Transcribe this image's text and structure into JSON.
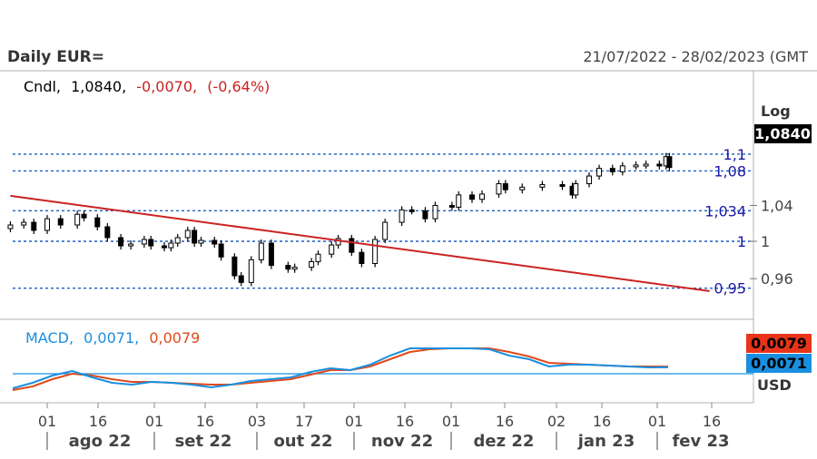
{
  "header": {
    "title": "Daily EUR=",
    "date_range": "21/07/2022 - 28/02/2023 (GMT"
  },
  "price_panel": {
    "legend_series": "Cndl,",
    "legend_last": "1,0840,",
    "legend_change": "-0,0070,",
    "legend_change_pct": "(-0,64%)",
    "scale_label": "Log",
    "last_price_tag": "1,0840",
    "tick_labels": [
      "1,04",
      "1",
      "0,96"
    ],
    "hline_labels": [
      "1,1",
      "1,08",
      "1,034",
      "1",
      "0,95"
    ],
    "colors": {
      "candle": "#000000",
      "trendline": "#cc2222",
      "hline": "#1f5fbf",
      "hline_label": "#1a1aa6",
      "change": "#cc2222",
      "tag_bg": "#000000"
    }
  },
  "macd_panel": {
    "legend_name": "MACD,",
    "legend_macd": "0,0071,",
    "legend_signal": "0,0079",
    "tag_signal": "0,0079",
    "tag_macd": "0,0071",
    "currency": "USD",
    "colors": {
      "macd": "#1a8fe0",
      "signal": "#e04a1a",
      "zero_line": "#1a8fe0"
    }
  },
  "x_axis": {
    "day_labels": [
      "01",
      "16",
      "01",
      "16",
      "03",
      "17",
      "01",
      "16",
      "01",
      "16",
      "02",
      "16",
      "01",
      "16"
    ],
    "month_labels": [
      "ago 22",
      "set 22",
      "out 22",
      "nov 22",
      "dez 22",
      "jan 23",
      "fev 23"
    ]
  },
  "chart_data": [
    {
      "type": "candlestick",
      "title": "Daily EUR=",
      "scale": "log",
      "ylim": [
        0.945,
        1.12
      ],
      "x_range": [
        "2022-07-21",
        "2023-02-28"
      ],
      "horizontal_lines": [
        1.1,
        1.08,
        1.034,
        1.0,
        0.95
      ],
      "trendline": {
        "from": {
          "date": "2022-07-21",
          "value": 1.051
        },
        "to": {
          "date": "2023-02-15",
          "value": 0.947
        }
      },
      "close_series": [
        {
          "date": "2022-07-21",
          "value": 1.018
        },
        {
          "date": "2022-07-25",
          "value": 1.021
        },
        {
          "date": "2022-07-28",
          "value": 1.012
        },
        {
          "date": "2022-08-01",
          "value": 1.025
        },
        {
          "date": "2022-08-05",
          "value": 1.018
        },
        {
          "date": "2022-08-10",
          "value": 1.03
        },
        {
          "date": "2022-08-12",
          "value": 1.026
        },
        {
          "date": "2022-08-16",
          "value": 1.016
        },
        {
          "date": "2022-08-19",
          "value": 1.004
        },
        {
          "date": "2022-08-23",
          "value": 0.995
        },
        {
          "date": "2022-08-26",
          "value": 0.997
        },
        {
          "date": "2022-08-30",
          "value": 1.002
        },
        {
          "date": "2022-09-01",
          "value": 0.995
        },
        {
          "date": "2022-09-05",
          "value": 0.993
        },
        {
          "date": "2022-09-07",
          "value": 0.998
        },
        {
          "date": "2022-09-09",
          "value": 1.004
        },
        {
          "date": "2022-09-12",
          "value": 1.012
        },
        {
          "date": "2022-09-14",
          "value": 0.998
        },
        {
          "date": "2022-09-16",
          "value": 1.001
        },
        {
          "date": "2022-09-20",
          "value": 0.997
        },
        {
          "date": "2022-09-22",
          "value": 0.983
        },
        {
          "date": "2022-09-26",
          "value": 0.963
        },
        {
          "date": "2022-09-28",
          "value": 0.956
        },
        {
          "date": "2022-10-01",
          "value": 0.98
        },
        {
          "date": "2022-10-04",
          "value": 0.998
        },
        {
          "date": "2022-10-07",
          "value": 0.974
        },
        {
          "date": "2022-10-12",
          "value": 0.97
        },
        {
          "date": "2022-10-14",
          "value": 0.972
        },
        {
          "date": "2022-10-19",
          "value": 0.978
        },
        {
          "date": "2022-10-21",
          "value": 0.986
        },
        {
          "date": "2022-10-25",
          "value": 0.996
        },
        {
          "date": "2022-10-27",
          "value": 1.003
        },
        {
          "date": "2022-10-31",
          "value": 0.988
        },
        {
          "date": "2022-11-03",
          "value": 0.976
        },
        {
          "date": "2022-11-07",
          "value": 1.002
        },
        {
          "date": "2022-11-10",
          "value": 1.021
        },
        {
          "date": "2022-11-15",
          "value": 1.035
        },
        {
          "date": "2022-11-18",
          "value": 1.034
        },
        {
          "date": "2022-11-22",
          "value": 1.025
        },
        {
          "date": "2022-11-25",
          "value": 1.04
        },
        {
          "date": "2022-11-30",
          "value": 1.038
        },
        {
          "date": "2022-12-02",
          "value": 1.052
        },
        {
          "date": "2022-12-06",
          "value": 1.047
        },
        {
          "date": "2022-12-09",
          "value": 1.053
        },
        {
          "date": "2022-12-14",
          "value": 1.065
        },
        {
          "date": "2022-12-16",
          "value": 1.058
        },
        {
          "date": "2022-12-21",
          "value": 1.061
        },
        {
          "date": "2022-12-27",
          "value": 1.064
        },
        {
          "date": "2023-01-02",
          "value": 1.062
        },
        {
          "date": "2023-01-05",
          "value": 1.052
        },
        {
          "date": "2023-01-06",
          "value": 1.065
        },
        {
          "date": "2023-01-10",
          "value": 1.074
        },
        {
          "date": "2023-01-13",
          "value": 1.083
        },
        {
          "date": "2023-01-17",
          "value": 1.079
        },
        {
          "date": "2023-01-20",
          "value": 1.086
        },
        {
          "date": "2023-01-24",
          "value": 1.087
        },
        {
          "date": "2023-01-27",
          "value": 1.088
        },
        {
          "date": "2023-01-31",
          "value": 1.086
        },
        {
          "date": "2023-02-02",
          "value": 1.097
        },
        {
          "date": "2023-02-03",
          "value": 1.084
        }
      ]
    },
    {
      "type": "line",
      "title": "MACD",
      "series": [
        {
          "name": "MACD",
          "values": [
            -0.016,
            -0.01,
            -0.002,
            0.003,
            -0.004,
            -0.01,
            -0.012,
            -0.009,
            -0.01,
            -0.012,
            -0.015,
            -0.012,
            -0.008,
            -0.006,
            -0.004,
            0.002,
            0.006,
            0.004,
            0.01,
            0.02,
            0.028,
            0.028,
            0.028,
            0.028,
            0.027,
            0.02,
            0.016,
            0.008,
            0.01,
            0.01,
            0.009,
            0.008,
            0.007,
            0.0071
          ]
        },
        {
          "name": "",
          "values": [
            -0.018,
            -0.014,
            -0.006,
            0.0,
            -0.002,
            -0.006,
            -0.009,
            -0.009,
            -0.01,
            -0.011,
            -0.012,
            -0.012,
            -0.01,
            -0.008,
            -0.006,
            -0.001,
            0.004,
            0.004,
            0.008,
            0.016,
            0.024,
            0.027,
            0.028,
            0.028,
            0.028,
            0.024,
            0.019,
            0.012,
            0.011,
            0.01,
            0.009,
            0.008,
            0.008,
            0.0079
          ]
        }
      ],
      "zero_line": 0
    }
  ]
}
